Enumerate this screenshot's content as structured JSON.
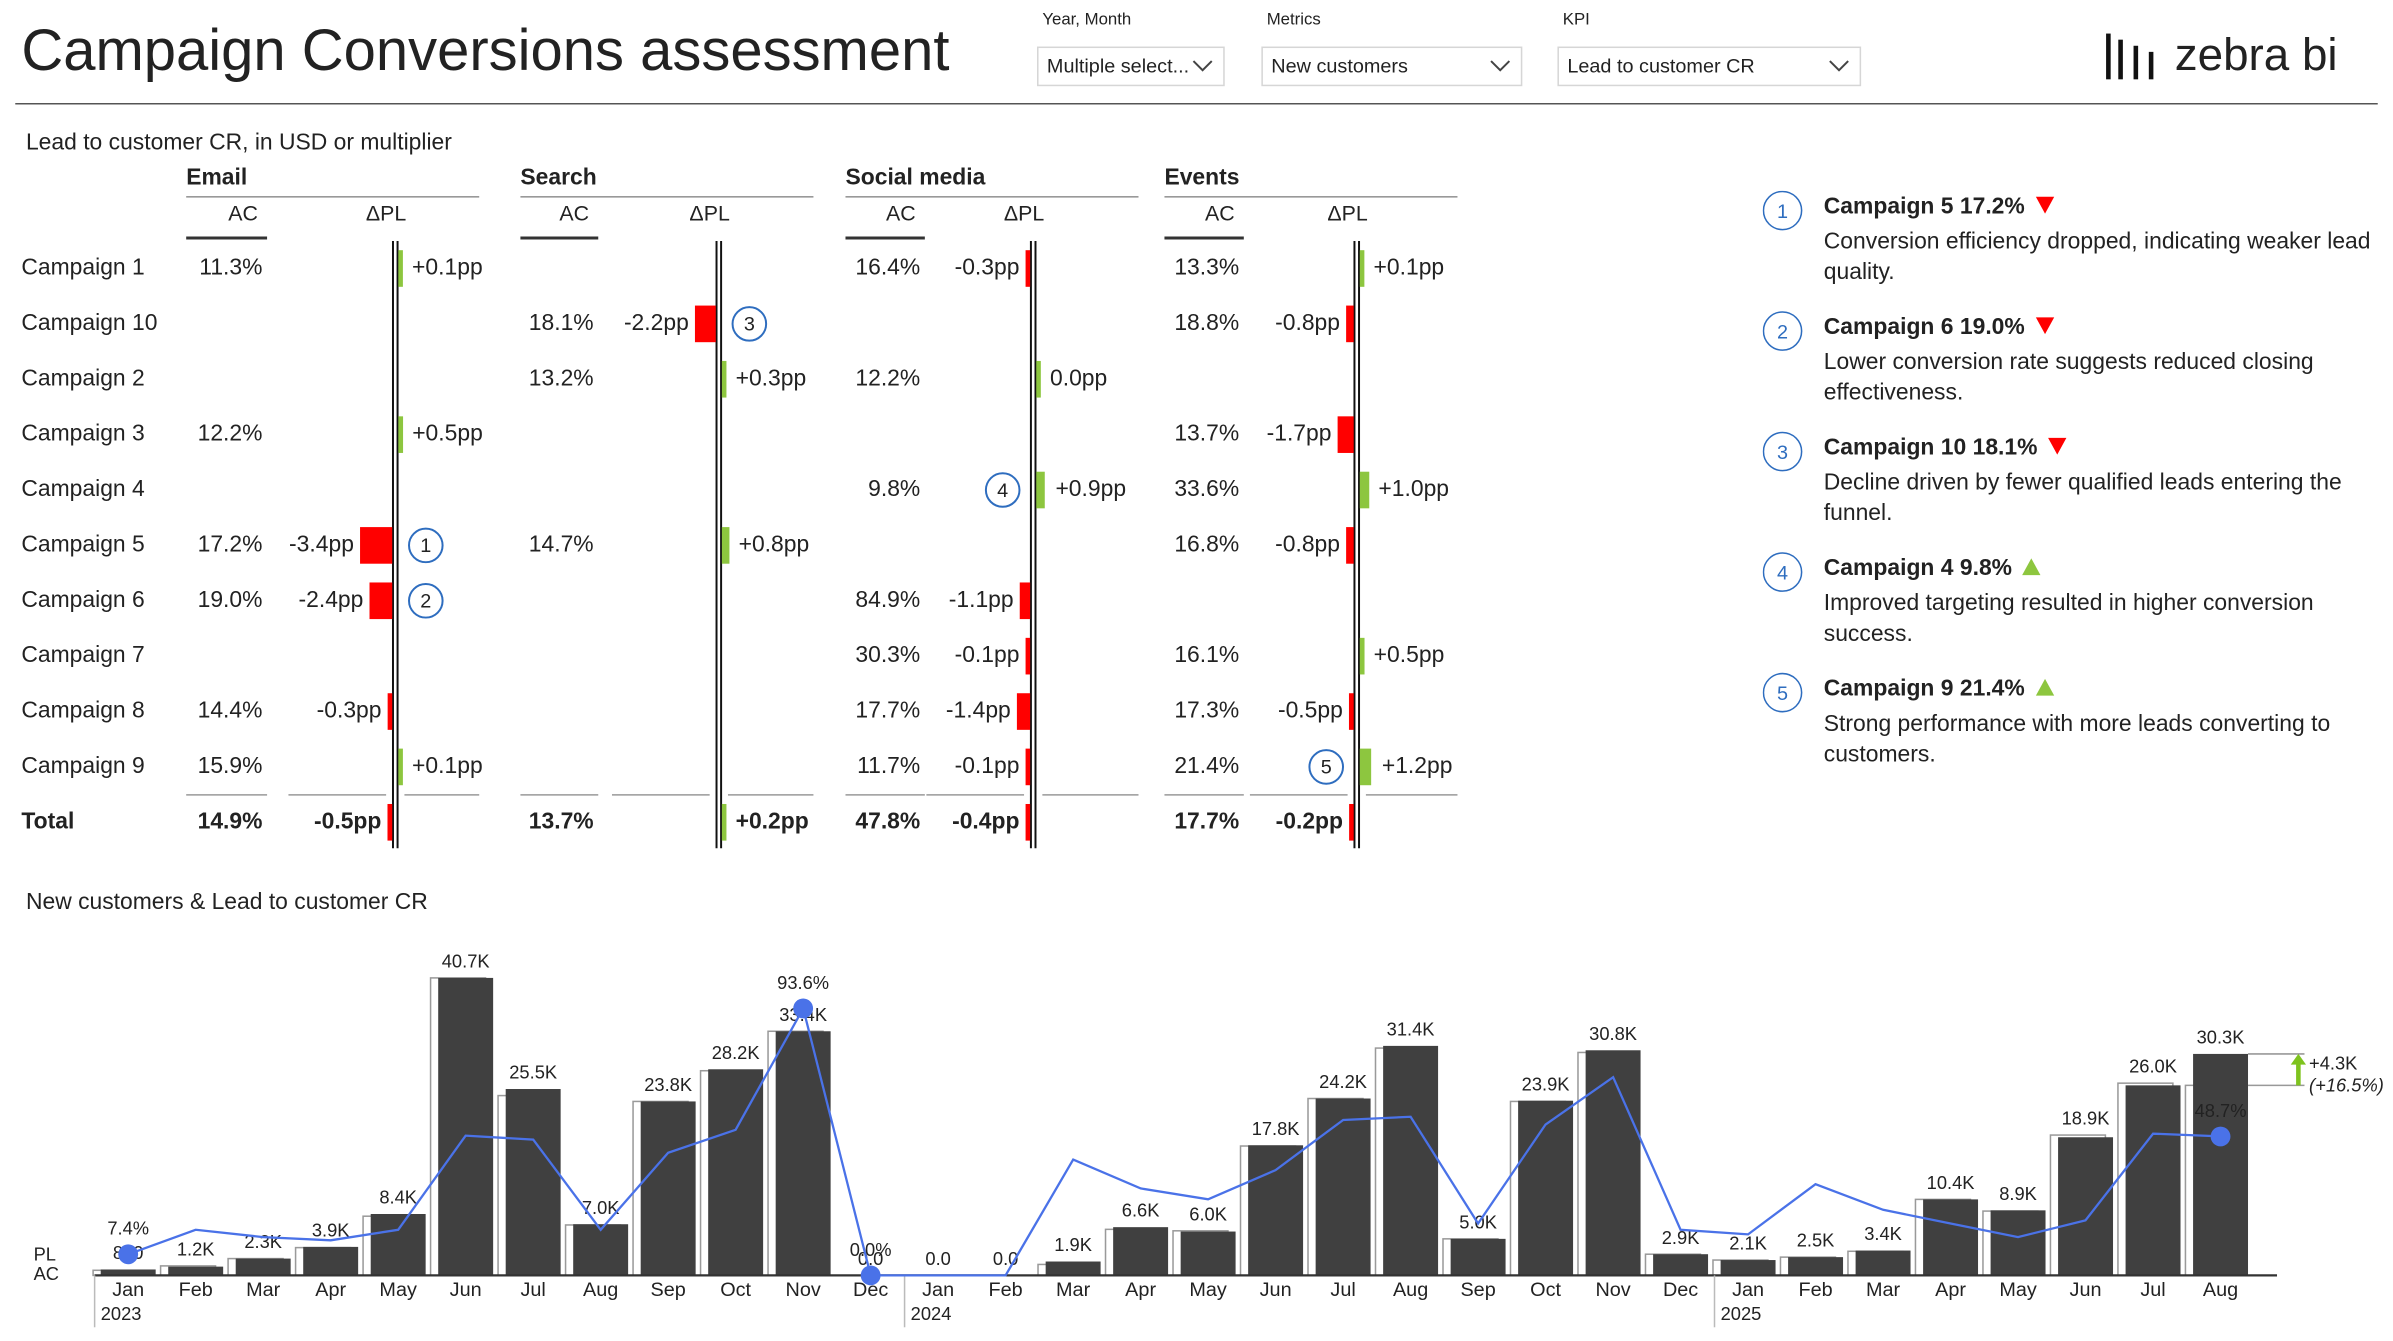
{
  "header": {
    "title": "Campaign Conversions assessment",
    "logo": "zebra bi",
    "filters": [
      {
        "label": "Year, Month",
        "value": "Multiple select..."
      },
      {
        "label": "Metrics",
        "value": "New customers"
      },
      {
        "label": "KPI",
        "value": "Lead to customer CR"
      }
    ]
  },
  "table": {
    "title": "Lead to customer CR, in USD or multiplier",
    "positive_color": "#8dc63f",
    "negative_color": "#ff0000",
    "groups": [
      {
        "name": "Email",
        "columns": [
          "AC",
          "ΔPL"
        ]
      },
      {
        "name": "Search",
        "columns": [
          "AC",
          "ΔPL"
        ]
      },
      {
        "name": "Social media",
        "columns": [
          "AC",
          "ΔPL"
        ]
      },
      {
        "name": "Events",
        "columns": [
          "AC",
          "ΔPL"
        ]
      }
    ],
    "rows": [
      {
        "label": "Campaign 1",
        "cells": [
          {
            "ac": "11.3%",
            "delta": {
              "value": 0.1,
              "label": "+0.1pp"
            }
          },
          null,
          {
            "ac": "16.4%",
            "delta": {
              "value": -0.3,
              "label": "-0.3pp"
            }
          },
          {
            "ac": "13.3%",
            "delta": {
              "value": 0.1,
              "label": "+0.1pp"
            }
          }
        ]
      },
      {
        "label": "Campaign 10",
        "cells": [
          null,
          {
            "ac": "18.1%",
            "delta": {
              "value": -2.2,
              "label": "-2.2pp",
              "marker": "3"
            }
          },
          null,
          {
            "ac": "18.8%",
            "delta": {
              "value": -0.8,
              "label": "-0.8pp"
            }
          }
        ]
      },
      {
        "label": "Campaign 2",
        "cells": [
          null,
          {
            "ac": "13.2%",
            "delta": {
              "value": 0.3,
              "label": "+0.3pp"
            }
          },
          {
            "ac": "12.2%",
            "delta": {
              "value": 0,
              "label": "0.0pp"
            }
          },
          null
        ]
      },
      {
        "label": "Campaign 3",
        "cells": [
          {
            "ac": "12.2%",
            "delta": {
              "value": 0.5,
              "label": "+0.5pp"
            }
          },
          null,
          null,
          {
            "ac": "13.7%",
            "delta": {
              "value": -1.7,
              "label": "-1.7pp"
            }
          }
        ]
      },
      {
        "label": "Campaign 4",
        "cells": [
          null,
          null,
          {
            "ac": "9.8%",
            "delta": {
              "value": 0.9,
              "label": "+0.9pp",
              "marker": "4"
            }
          },
          {
            "ac": "33.6%",
            "delta": {
              "value": 1.0,
              "label": "+1.0pp"
            }
          }
        ]
      },
      {
        "label": "Campaign 5",
        "cells": [
          {
            "ac": "17.2%",
            "delta": {
              "value": -3.4,
              "label": "-3.4pp",
              "marker": "1"
            }
          },
          {
            "ac": "14.7%",
            "delta": {
              "value": 0.8,
              "label": "+0.8pp"
            }
          },
          null,
          {
            "ac": "16.8%",
            "delta": {
              "value": -0.8,
              "label": "-0.8pp"
            }
          }
        ]
      },
      {
        "label": "Campaign 6",
        "cells": [
          {
            "ac": "19.0%",
            "delta": {
              "value": -2.4,
              "label": "-2.4pp",
              "marker": "2"
            }
          },
          null,
          {
            "ac": "84.9%",
            "delta": {
              "value": -1.1,
              "label": "-1.1pp"
            }
          },
          null
        ]
      },
      {
        "label": "Campaign 7",
        "cells": [
          null,
          null,
          {
            "ac": "30.3%",
            "delta": {
              "value": -0.1,
              "label": "-0.1pp"
            }
          },
          {
            "ac": "16.1%",
            "delta": {
              "value": 0.5,
              "label": "+0.5pp"
            }
          }
        ]
      },
      {
        "label": "Campaign 8",
        "cells": [
          {
            "ac": "14.4%",
            "delta": {
              "value": -0.3,
              "label": "-0.3pp"
            }
          },
          null,
          {
            "ac": "17.7%",
            "delta": {
              "value": -1.4,
              "label": "-1.4pp"
            }
          },
          {
            "ac": "17.3%",
            "delta": {
              "value": -0.5,
              "label": "-0.5pp"
            }
          }
        ]
      },
      {
        "label": "Campaign 9",
        "cells": [
          {
            "ac": "15.9%",
            "delta": {
              "value": 0.1,
              "label": "+0.1pp"
            }
          },
          null,
          {
            "ac": "11.7%",
            "delta": {
              "value": -0.1,
              "label": "-0.1pp"
            }
          },
          {
            "ac": "21.4%",
            "delta": {
              "value": 1.2,
              "label": "+1.2pp",
              "marker": "5"
            }
          }
        ]
      }
    ],
    "total": {
      "label": "Total",
      "cells": [
        {
          "ac": "14.9%",
          "delta": {
            "value": -0.5,
            "label": "-0.5pp"
          }
        },
        {
          "ac": "13.7%",
          "delta": {
            "value": 0.2,
            "label": "+0.2pp"
          }
        },
        {
          "ac": "47.8%",
          "delta": {
            "value": -0.4,
            "label": "-0.4pp"
          }
        },
        {
          "ac": "17.7%",
          "delta": {
            "value": -0.2,
            "label": "-0.2pp"
          }
        }
      ]
    }
  },
  "comments": [
    {
      "number": "1",
      "title": "Campaign 5 17.2%",
      "direction": "down",
      "text": "Conversion efficiency dropped, indicating weaker lead quality."
    },
    {
      "number": "2",
      "title": "Campaign 6 19.0%",
      "direction": "down",
      "text": "Lower conversion rate suggests reduced closing effectiveness."
    },
    {
      "number": "3",
      "title": "Campaign 10 18.1%",
      "direction": "down",
      "text": "Decline driven by fewer qualified leads entering the funnel."
    },
    {
      "number": "4",
      "title": "Campaign 4 9.8%",
      "direction": "up",
      "text": "Improved targeting resulted in higher conversion success."
    },
    {
      "number": "5",
      "title": "Campaign 9 21.4%",
      "direction": "up",
      "text": "Strong performance with more leads converting to customers."
    }
  ],
  "chart_data": {
    "type": "bar-line",
    "title": "New customers & Lead to customer CR",
    "categories": [
      "Jan",
      "Feb",
      "Mar",
      "Apr",
      "May",
      "Jun",
      "Jul",
      "Aug",
      "Sep",
      "Oct",
      "Nov",
      "Dec",
      "Jan",
      "Feb",
      "Mar",
      "Apr",
      "May",
      "Jun",
      "Jul",
      "Aug",
      "Sep",
      "Oct",
      "Nov",
      "Dec",
      "Jan",
      "Feb",
      "Mar",
      "Apr",
      "May",
      "Jun",
      "Jul",
      "Aug"
    ],
    "years": [
      "2023",
      "2024",
      "2025"
    ],
    "series": [
      {
        "name": "PL",
        "type": "outline",
        "color": "#9a9a9a",
        "values": [
          700,
          1300,
          2300,
          3800,
          8100,
          40700,
          24600,
          6900,
          23800,
          28000,
          33400,
          0,
          0,
          0,
          1500,
          6300,
          6100,
          17700,
          24200,
          31100,
          5000,
          23800,
          30500,
          2900,
          2100,
          2500,
          3300,
          10400,
          8800,
          19200,
          26300,
          26000
        ]
      },
      {
        "name": "AC",
        "type": "bar",
        "color": "#404040",
        "values": [
          810,
          1200,
          2300,
          3900,
          8400,
          40700,
          25500,
          7000,
          23800,
          28200,
          33400,
          0,
          0,
          0,
          1900,
          6600,
          6000,
          17800,
          24200,
          31400,
          5000,
          23900,
          30800,
          2900,
          2100,
          2500,
          3400,
          10400,
          8900,
          18900,
          26000,
          30300
        ],
        "value_labels": [
          "810",
          "1.2K",
          "2.3K",
          "3.9K",
          "8.4K",
          "40.7K",
          "25.5K",
          "7.0K",
          "23.8K",
          "28.2K",
          "33.4K",
          "0.0",
          "0.0",
          "0.0",
          "1.9K",
          "6.6K",
          "6.0K",
          "17.8K",
          "24.2K",
          "31.4K",
          "5.0K",
          "23.9K",
          "30.8K",
          "2.9K",
          "2.1K",
          "2.5K",
          "3.4K",
          "10.4K",
          "8.9K",
          "18.9K",
          "26.0K",
          "30.3K"
        ]
      },
      {
        "type": "line",
        "color": "#4a72e8",
        "values": [
          7.4,
          16,
          13.4,
          12.3,
          16,
          49,
          47.6,
          16,
          43,
          51,
          93.6,
          0,
          0,
          0,
          40.6,
          30.5,
          26.7,
          36.9,
          54.5,
          55.6,
          18.2,
          52.9,
          69.5,
          16,
          14.4,
          32,
          23,
          18.2,
          13.4,
          19.3,
          49.7,
          48.7
        ],
        "value_labels": [
          "7.4%",
          null,
          null,
          null,
          null,
          null,
          null,
          null,
          null,
          null,
          "93.6%",
          "0.0%",
          null,
          null,
          null,
          null,
          null,
          null,
          null,
          null,
          null,
          null,
          null,
          null,
          null,
          null,
          null,
          null,
          null,
          null,
          null,
          "48.7%"
        ]
      }
    ],
    "variance": {
      "value": 4300,
      "label": "+4.3K",
      "color": "#7ec31e",
      "percent": {
        "value": 16.5,
        "label": "(+16.5%)"
      }
    }
  }
}
